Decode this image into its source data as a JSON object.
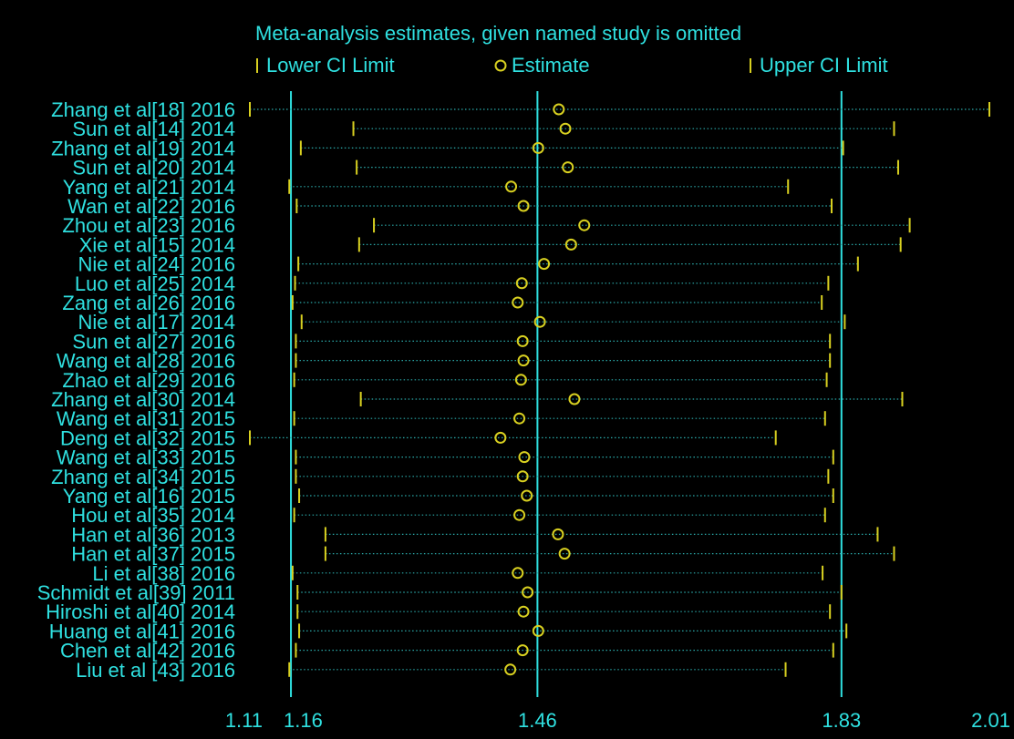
{
  "colors": {
    "background": "#000000",
    "text": "#2fe0e0",
    "reference_lines": "#2fe0e0",
    "markers": "#d8d020",
    "dotted": "#2aa8a8"
  },
  "chart_data": {
    "type": "forest",
    "title": "Meta-analysis estimates, given named study is omitted",
    "legend": [
      {
        "symbol": "|",
        "label": "Lower CI Limit"
      },
      {
        "symbol": "o",
        "label": "Estimate"
      },
      {
        "symbol": "|",
        "label": "Upper CI Limit"
      }
    ],
    "x_ticks": [
      "1.11",
      "1.16",
      "1.46",
      "1.83",
      "2.01"
    ],
    "x_tick_values": [
      1.11,
      1.16,
      1.46,
      1.83,
      2.01
    ],
    "reference_lines": [
      1.16,
      1.46,
      1.83
    ],
    "xlim": [
      1.11,
      2.01
    ],
    "studies": [
      {
        "label": "Zhang et al[18] 2016",
        "lower": 1.11,
        "estimate": 1.486,
        "upper": 2.01
      },
      {
        "label": "Sun et al[14] 2014",
        "lower": 1.236,
        "estimate": 1.494,
        "upper": 1.894
      },
      {
        "label": "Zhang et al[19] 2014",
        "lower": 1.172,
        "estimate": 1.461,
        "upper": 1.832
      },
      {
        "label": "Sun et al[20] 2014",
        "lower": 1.24,
        "estimate": 1.497,
        "upper": 1.899
      },
      {
        "label": "Yang et al[21] 2014",
        "lower": 1.158,
        "estimate": 1.428,
        "upper": 1.765
      },
      {
        "label": "Wan et al[22] 2016",
        "lower": 1.167,
        "estimate": 1.443,
        "upper": 1.818
      },
      {
        "label": "Zhou et al[23] 2016",
        "lower": 1.261,
        "estimate": 1.517,
        "upper": 1.913
      },
      {
        "label": "Xie et al[15] 2014",
        "lower": 1.243,
        "estimate": 1.501,
        "upper": 1.902
      },
      {
        "label": "Nie et al[24] 2016",
        "lower": 1.169,
        "estimate": 1.468,
        "upper": 1.85
      },
      {
        "label": "Luo et al[25] 2014",
        "lower": 1.165,
        "estimate": 1.441,
        "upper": 1.814
      },
      {
        "label": "Zang et al[26] 2016",
        "lower": 1.162,
        "estimate": 1.436,
        "upper": 1.806
      },
      {
        "label": "Nie et al[17] 2014",
        "lower": 1.173,
        "estimate": 1.463,
        "upper": 1.834
      },
      {
        "label": "Sun et al[27] 2016",
        "lower": 1.166,
        "estimate": 1.442,
        "upper": 1.816
      },
      {
        "label": "Wang et al[28] 2016",
        "lower": 1.166,
        "estimate": 1.443,
        "upper": 1.816
      },
      {
        "label": "Zhao et al[29] 2016",
        "lower": 1.164,
        "estimate": 1.44,
        "upper": 1.812
      },
      {
        "label": "Zhang et al[30] 2014",
        "lower": 1.245,
        "estimate": 1.505,
        "upper": 1.904
      },
      {
        "label": "Wang et al[31] 2015",
        "lower": 1.164,
        "estimate": 1.438,
        "upper": 1.81
      },
      {
        "label": "Deng et al[32] 2015",
        "lower": 1.11,
        "estimate": 1.415,
        "upper": 1.75
      },
      {
        "label": "Wang et al[33] 2015",
        "lower": 1.166,
        "estimate": 1.444,
        "upper": 1.82
      },
      {
        "label": "Zhang et al[34] 2015",
        "lower": 1.166,
        "estimate": 1.442,
        "upper": 1.814
      },
      {
        "label": "Yang et al[16] 2015",
        "lower": 1.17,
        "estimate": 1.447,
        "upper": 1.82
      },
      {
        "label": "Hou et al[35] 2014",
        "lower": 1.164,
        "estimate": 1.438,
        "upper": 1.81
      },
      {
        "label": "Han et al[36] 2013",
        "lower": 1.202,
        "estimate": 1.485,
        "upper": 1.874
      },
      {
        "label": "Han et al[37] 2015",
        "lower": 1.202,
        "estimate": 1.493,
        "upper": 1.894
      },
      {
        "label": "Li et al[38] 2016",
        "lower": 1.162,
        "estimate": 1.436,
        "upper": 1.807
      },
      {
        "label": "Schmidt et al[39] 2011",
        "lower": 1.168,
        "estimate": 1.448,
        "upper": 1.83
      },
      {
        "label": "Hiroshi et al[40] 2014",
        "lower": 1.168,
        "estimate": 1.443,
        "upper": 1.816
      },
      {
        "label": "Huang et al[41] 2016",
        "lower": 1.17,
        "estimate": 1.461,
        "upper": 1.836
      },
      {
        "label": "Chen et al[42] 2016",
        "lower": 1.166,
        "estimate": 1.442,
        "upper": 1.82
      },
      {
        "label": "Liu et al [43] 2016",
        "lower": 1.158,
        "estimate": 1.427,
        "upper": 1.762
      }
    ]
  }
}
